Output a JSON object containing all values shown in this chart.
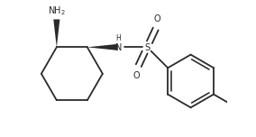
{
  "bg_color": "#ffffff",
  "line_color": "#2a2a2a",
  "lw": 1.3,
  "fs": 7.0,
  "xlim": [
    0.0,
    2.85
  ],
  "ylim": [
    -0.85,
    1.1
  ]
}
